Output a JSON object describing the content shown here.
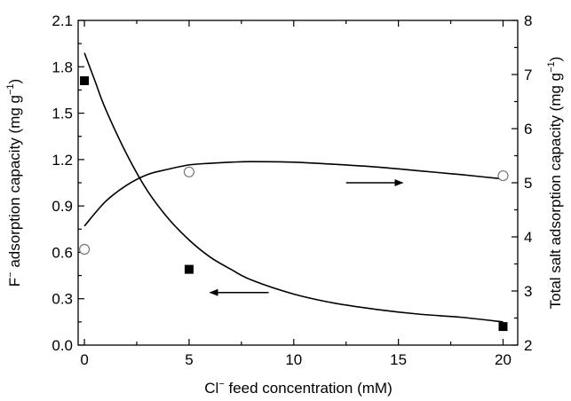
{
  "chart_data": {
    "type": "scatter",
    "xlabel_main": "Cl",
    "xlabel_sup": "−",
    "xlabel_rest": " feed concentration (mM)",
    "ylabel_left_main": "F",
    "ylabel_left_sup": "−",
    "ylabel_left_rest": " adsorption capacity (mg g",
    "ylabel_left_sup2": "−1",
    "ylabel_left_end": ")",
    "ylabel_right_main": "Total salt adsorption capacity (mg g",
    "ylabel_right_sup": "−1",
    "ylabel_right_end": ")",
    "xlim": [
      -0.3,
      20.7
    ],
    "ylim_left": [
      0,
      2.1
    ],
    "ylim_right": [
      2,
      8
    ],
    "x_ticks": [
      "0",
      "5",
      "10",
      "15",
      "20"
    ],
    "x_tick_values": [
      0,
      5,
      10,
      15,
      20
    ],
    "y_left_ticks": [
      "0.0",
      "0.3",
      "0.6",
      "0.9",
      "1.2",
      "1.5",
      "1.8",
      "2.1"
    ],
    "y_left_tick_values": [
      0,
      0.3,
      0.6,
      0.9,
      1.2,
      1.5,
      1.8,
      2.1
    ],
    "y_right_ticks": [
      "2",
      "3",
      "4",
      "5",
      "6",
      "7",
      "8"
    ],
    "y_right_tick_values": [
      2,
      3,
      4,
      5,
      6,
      7,
      8
    ],
    "series": [
      {
        "axis": "left",
        "marker": "filled-square",
        "x": [
          0,
          5,
          20
        ],
        "y": [
          1.71,
          0.49,
          0.12
        ],
        "fit_x": [
          0,
          0.5,
          1,
          2,
          3,
          4,
          5,
          6,
          7,
          8,
          10,
          12,
          14,
          16,
          18,
          20
        ],
        "fit_y": [
          1.89,
          1.71,
          1.53,
          1.24,
          1.0,
          0.82,
          0.68,
          0.57,
          0.49,
          0.42,
          0.33,
          0.27,
          0.23,
          0.2,
          0.18,
          0.15
        ]
      },
      {
        "axis": "right",
        "marker": "open-circle",
        "x": [
          0,
          5,
          20
        ],
        "y": [
          3.77,
          5.2,
          5.13
        ],
        "fit_x": [
          0,
          1,
          2,
          3,
          4,
          5,
          6,
          7,
          8,
          10,
          12,
          14,
          16,
          18,
          20
        ],
        "fit_y": [
          4.2,
          4.65,
          4.95,
          5.15,
          5.25,
          5.33,
          5.36,
          5.38,
          5.39,
          5.38,
          5.34,
          5.29,
          5.22,
          5.15,
          5.07
        ]
      }
    ],
    "annotations": [
      {
        "type": "arrow",
        "direction": "right",
        "axis": "right",
        "x_start": 12.5,
        "x_end": 15.2,
        "y": 5.0
      },
      {
        "type": "arrow",
        "direction": "left",
        "axis": "left",
        "x_start": 8.8,
        "x_end": 6.0,
        "y": 0.34
      }
    ]
  }
}
